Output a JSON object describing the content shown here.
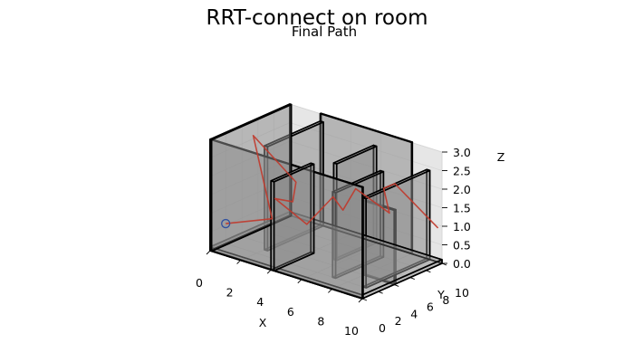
{
  "figure": {
    "title": "RRT-connect on room",
    "subtitle": "Final Path"
  },
  "chart_data": {
    "type": "3d-line",
    "title": "RRT-connect on room",
    "subtitle": "Final Path",
    "xlabel": "X",
    "ylabel": "Y",
    "zlabel": "Z",
    "xlim": [
      0,
      10
    ],
    "ylim": [
      0,
      10
    ],
    "zlim": [
      0,
      3
    ],
    "xticks": [
      "0",
      "2",
      "4",
      "6",
      "8",
      "10"
    ],
    "yticks": [
      "0",
      "2",
      "4",
      "6",
      "8",
      "10"
    ],
    "zticks": [
      "0.0",
      "0.5",
      "1.0",
      "1.5",
      "2.0",
      "2.5",
      "3.0"
    ],
    "grid": true,
    "colors": {
      "path": "#c0392b",
      "start_marker": "#3050a0",
      "obstacle_fill": "#8c8c8c",
      "obstacle_edge": "#000000"
    },
    "obstacles": [
      {
        "name": "floor",
        "x": [
          0,
          10
        ],
        "y": [
          0,
          10
        ],
        "z": [
          0,
          0.1
        ]
      },
      {
        "name": "wall-front",
        "x": [
          0,
          10
        ],
        "y": [
          0,
          0.1
        ],
        "z": [
          0,
          3
        ]
      },
      {
        "name": "wall-left",
        "x": [
          0,
          0.1
        ],
        "y": [
          0,
          10
        ],
        "z": [
          0,
          3
        ]
      },
      {
        "name": "wall-back",
        "x": [
          2,
          8
        ],
        "y": [
          10,
          10.1
        ],
        "z": [
          0,
          3
        ]
      },
      {
        "name": "partition-1",
        "x": [
          2,
          2.2
        ],
        "y": [
          3,
          10
        ],
        "z": [
          0,
          2.8
        ]
      },
      {
        "name": "partition-2",
        "x": [
          4,
          4.2
        ],
        "y": [
          0,
          5
        ],
        "z": [
          0,
          2.4
        ]
      },
      {
        "name": "partition-3",
        "x": [
          5.5,
          5.7
        ],
        "y": [
          5,
          10
        ],
        "z": [
          0,
          2.6
        ]
      },
      {
        "name": "partition-4",
        "x": [
          7,
          7.2
        ],
        "y": [
          2,
          8
        ],
        "z": [
          0,
          2.3
        ]
      },
      {
        "name": "partition-5",
        "x": [
          9,
          9.2
        ],
        "y": [
          2,
          10
        ],
        "z": [
          0,
          2.4
        ]
      },
      {
        "name": "partition-6",
        "x": [
          8,
          10
        ],
        "y": [
          4,
          4.2
        ],
        "z": [
          0,
          2.0
        ]
      }
    ],
    "path": {
      "start": [
        0.5,
        1.0,
        0.7
      ],
      "points": [
        [
          0.5,
          1.0,
          0.7
        ],
        [
          2.5,
          3.0,
          0.9
        ],
        [
          1.0,
          3.5,
          2.9
        ],
        [
          2.5,
          6.0,
          1.6
        ],
        [
          1.5,
          7.5,
          0.8
        ],
        [
          2.8,
          2.8,
          1.5
        ],
        [
          4.0,
          4.5,
          0.8
        ],
        [
          5.2,
          5.5,
          1.6
        ],
        [
          4.8,
          7.5,
          1.0
        ],
        [
          6.0,
          6.8,
          1.8
        ],
        [
          7.8,
          7.6,
          1.3
        ],
        [
          8.0,
          6.5,
          2.1
        ],
        [
          9.0,
          6.0,
          2.4
        ],
        [
          10.0,
          9.5,
          1.0
        ]
      ]
    }
  }
}
